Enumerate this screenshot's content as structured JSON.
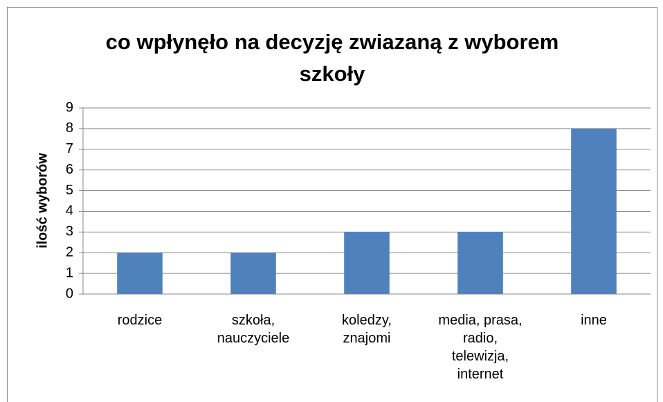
{
  "chart_data": {
    "type": "bar",
    "title": "co wpłynęło na decyzję zwiazaną z wyborem szkoły",
    "y_label": "ilość wyborów",
    "categories": [
      "rodzice",
      "szkoła, nauczyciele",
      "koledzy, znajomi",
      "media, prasa, radio, telewizja, internet",
      "inne"
    ],
    "values": [
      2,
      2,
      3,
      3,
      8
    ],
    "color": "#4f81bd",
    "ylim": [
      0,
      9
    ],
    "yticks": [
      0,
      1,
      2,
      3,
      4,
      5,
      6,
      7,
      8,
      9
    ],
    "grid": true
  }
}
